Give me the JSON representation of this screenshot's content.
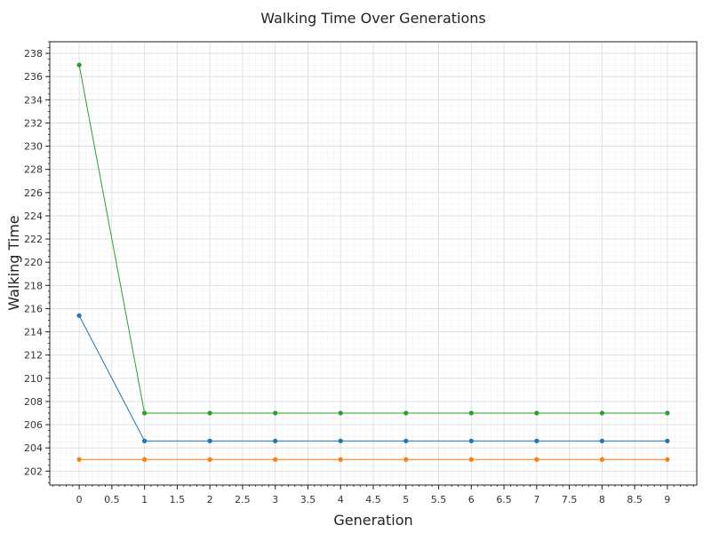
{
  "chart_data": {
    "type": "line",
    "title": "Walking Time Over Generations",
    "xlabel": "Generation",
    "ylabel": "Walking Time",
    "xlim": [
      -0.45,
      9.45
    ],
    "ylim": [
      200.8,
      239.0
    ],
    "x_ticks": [
      0,
      0.5,
      1,
      1.5,
      2,
      2.5,
      3,
      3.5,
      4,
      4.5,
      5,
      5.5,
      6,
      6.5,
      7,
      7.5,
      8,
      8.5,
      9
    ],
    "x_tick_labels": [
      "0",
      "0.5",
      "1",
      "1.5",
      "2",
      "2.5",
      "3",
      "3.5",
      "4",
      "4.5",
      "5",
      "5.5",
      "6",
      "6.5",
      "7",
      "7.5",
      "8",
      "8.5",
      "9"
    ],
    "y_ticks": [
      202,
      204,
      206,
      208,
      210,
      212,
      214,
      216,
      218,
      220,
      222,
      224,
      226,
      228,
      230,
      232,
      234,
      236,
      238
    ],
    "grid": true,
    "x": [
      0,
      1,
      2,
      3,
      4,
      5,
      6,
      7,
      8,
      9
    ],
    "series": [
      {
        "color": "#1f77b4",
        "values": [
          215.4,
          204.6,
          204.6,
          204.6,
          204.6,
          204.6,
          204.6,
          204.6,
          204.6,
          204.6
        ]
      },
      {
        "color": "#ff7f0e",
        "values": [
          203.0,
          203.0,
          203.0,
          203.0,
          203.0,
          203.0,
          203.0,
          203.0,
          203.0,
          203.0
        ]
      },
      {
        "color": "#2ca02c",
        "values": [
          237.0,
          207.0,
          207.0,
          207.0,
          207.0,
          207.0,
          207.0,
          207.0,
          207.0,
          207.0
        ]
      }
    ]
  }
}
